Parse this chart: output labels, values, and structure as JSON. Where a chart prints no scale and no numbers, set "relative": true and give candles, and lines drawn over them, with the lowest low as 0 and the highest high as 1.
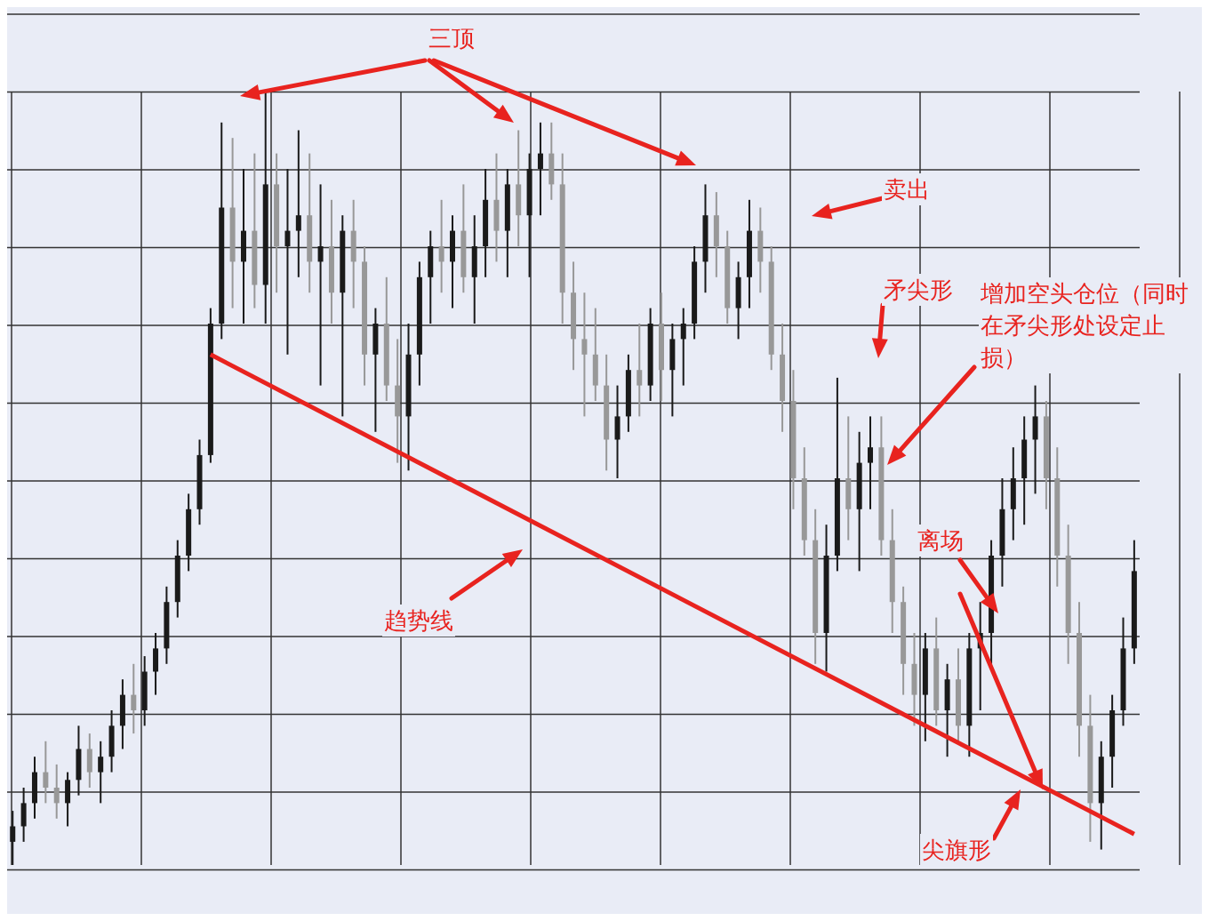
{
  "chart_data": {
    "type": "candlestick",
    "relative": true,
    "grid": true,
    "tick_labels": false,
    "colors": [
      "#1a1a1a",
      "#1a1a1a",
      "#1a1a1a",
      "#989898",
      "#989898",
      "#1a1a1a",
      "#1a1a1a",
      "#989898",
      "#1a1a1a",
      "#1a1a1a",
      "#1a1a1a",
      "#989898",
      "#1a1a1a",
      "#1a1a1a",
      "#1a1a1a",
      "#1a1a1a",
      "#1a1a1a",
      "#1a1a1a",
      "#1a1a1a",
      "#1a1a1a",
      "#989898",
      "#1a1a1a",
      "#989898",
      "#1a1a1a",
      "#989898",
      "#1a1a1a",
      "#1a1a1a",
      "#989898",
      "#1a1a1a",
      "#989898",
      "#1a1a1a",
      "#989898",
      "#989898",
      "#1a1a1a",
      "#989898",
      "#989898",
      "#1a1a1a",
      "#1a1a1a",
      "#1a1a1a",
      "#989898",
      "#1a1a1a",
      "#989898",
      "#1a1a1a",
      "#1a1a1a",
      "#989898",
      "#1a1a1a",
      "#989898",
      "#1a1a1a",
      "#1a1a1a",
      "#989898",
      "#989898",
      "#989898",
      "#989898",
      "#989898",
      "#989898",
      "#1a1a1a",
      "#1a1a1a",
      "#989898",
      "#1a1a1a",
      "#989898",
      "#1a1a1a",
      "#1a1a1a",
      "#1a1a1a",
      "#1a1a1a",
      "#989898",
      "#989898",
      "#1a1a1a",
      "#1a1a1a",
      "#989898",
      "#989898",
      "#989898",
      "#989898",
      "#989898",
      "#989898",
      "#1a1a1a",
      "#1a1a1a",
      "#989898",
      "#1a1a1a",
      "#1a1a1a",
      "#989898",
      "#989898",
      "#989898",
      "#989898",
      "#1a1a1a",
      "#989898",
      "#1a1a1a",
      "#989898",
      "#1a1a1a",
      "#1a1a1a",
      "#1a1a1a",
      "#1a1a1a",
      "#1a1a1a",
      "#1a1a1a",
      "#1a1a1a",
      "#989898",
      "#989898",
      "#989898",
      "#989898",
      "#989898",
      "#1a1a1a",
      "#1a1a1a",
      "#1a1a1a",
      "#1a1a1a"
    ],
    "categories": [
      null,
      null,
      null,
      null,
      null,
      null,
      null,
      null,
      null,
      null,
      null,
      null,
      null,
      null,
      null,
      null,
      null,
      null,
      null,
      null,
      null,
      null,
      null,
      null,
      null,
      null,
      null,
      null,
      null,
      null,
      null,
      null,
      null,
      null,
      null,
      null,
      null,
      null,
      null,
      null,
      null,
      null,
      null,
      null,
      null,
      null,
      null,
      null,
      null,
      null,
      null,
      null,
      null,
      null,
      null,
      null,
      null,
      null,
      null,
      null,
      null,
      null,
      null,
      null,
      null,
      null,
      null,
      null,
      null,
      null,
      null,
      null,
      null,
      null,
      null,
      null,
      null,
      null,
      null,
      null,
      null,
      null,
      null,
      null,
      null,
      null,
      null,
      null,
      null,
      null,
      null,
      null,
      null,
      null,
      null,
      null,
      null,
      null,
      null,
      null,
      null,
      null,
      null
    ],
    "ohlc": [
      [
        0.03,
        0.07,
        0.0,
        0.05
      ],
      [
        0.05,
        0.1,
        0.03,
        0.08
      ],
      [
        0.08,
        0.14,
        0.06,
        0.12
      ],
      [
        0.12,
        0.16,
        0.08,
        0.1
      ],
      [
        0.1,
        0.13,
        0.06,
        0.08
      ],
      [
        0.08,
        0.12,
        0.05,
        0.11
      ],
      [
        0.11,
        0.18,
        0.09,
        0.15
      ],
      [
        0.15,
        0.17,
        0.1,
        0.12
      ],
      [
        0.12,
        0.16,
        0.08,
        0.14
      ],
      [
        0.14,
        0.2,
        0.12,
        0.18
      ],
      [
        0.18,
        0.24,
        0.15,
        0.22
      ],
      [
        0.22,
        0.26,
        0.17,
        0.2
      ],
      [
        0.2,
        0.27,
        0.18,
        0.25
      ],
      [
        0.25,
        0.3,
        0.22,
        0.28
      ],
      [
        0.28,
        0.36,
        0.26,
        0.34
      ],
      [
        0.34,
        0.42,
        0.32,
        0.4
      ],
      [
        0.4,
        0.48,
        0.38,
        0.46
      ],
      [
        0.46,
        0.55,
        0.44,
        0.53
      ],
      [
        0.53,
        0.72,
        0.52,
        0.7
      ],
      [
        0.7,
        0.96,
        0.68,
        0.85
      ],
      [
        0.85,
        0.94,
        0.72,
        0.78
      ],
      [
        0.78,
        0.9,
        0.7,
        0.82
      ],
      [
        0.82,
        0.92,
        0.72,
        0.75
      ],
      [
        0.75,
        1.0,
        0.7,
        0.88
      ],
      [
        0.88,
        0.92,
        0.74,
        0.8
      ],
      [
        0.8,
        0.9,
        0.66,
        0.82
      ],
      [
        0.82,
        0.95,
        0.76,
        0.84
      ],
      [
        0.84,
        0.92,
        0.74,
        0.78
      ],
      [
        0.78,
        0.88,
        0.62,
        0.8
      ],
      [
        0.8,
        0.86,
        0.7,
        0.74
      ],
      [
        0.74,
        0.84,
        0.58,
        0.82
      ],
      [
        0.82,
        0.86,
        0.72,
        0.78
      ],
      [
        0.78,
        0.8,
        0.62,
        0.66
      ],
      [
        0.66,
        0.72,
        0.56,
        0.7
      ],
      [
        0.7,
        0.76,
        0.6,
        0.62
      ],
      [
        0.62,
        0.68,
        0.52,
        0.58
      ],
      [
        0.58,
        0.7,
        0.51,
        0.66
      ],
      [
        0.66,
        0.78,
        0.62,
        0.76
      ],
      [
        0.76,
        0.82,
        0.7,
        0.8
      ],
      [
        0.8,
        0.86,
        0.74,
        0.78
      ],
      [
        0.78,
        0.84,
        0.72,
        0.82
      ],
      [
        0.82,
        0.88,
        0.74,
        0.76
      ],
      [
        0.76,
        0.84,
        0.7,
        0.8
      ],
      [
        0.8,
        0.9,
        0.76,
        0.86
      ],
      [
        0.86,
        0.92,
        0.78,
        0.82
      ],
      [
        0.82,
        0.9,
        0.76,
        0.88
      ],
      [
        0.88,
        0.95,
        0.8,
        0.84
      ],
      [
        0.84,
        0.92,
        0.76,
        0.9
      ],
      [
        0.9,
        0.96,
        0.84,
        0.92
      ],
      [
        0.92,
        0.96,
        0.86,
        0.88
      ],
      [
        0.88,
        0.92,
        0.7,
        0.74
      ],
      [
        0.74,
        0.78,
        0.64,
        0.68
      ],
      [
        0.68,
        0.74,
        0.58,
        0.66
      ],
      [
        0.66,
        0.72,
        0.6,
        0.62
      ],
      [
        0.62,
        0.66,
        0.51,
        0.55
      ],
      [
        0.55,
        0.62,
        0.5,
        0.58
      ],
      [
        0.58,
        0.66,
        0.56,
        0.64
      ],
      [
        0.64,
        0.7,
        0.58,
        0.62
      ],
      [
        0.62,
        0.72,
        0.6,
        0.7
      ],
      [
        0.7,
        0.74,
        0.6,
        0.64
      ],
      [
        0.64,
        0.7,
        0.58,
        0.68
      ],
      [
        0.68,
        0.72,
        0.62,
        0.7
      ],
      [
        0.7,
        0.8,
        0.68,
        0.78
      ],
      [
        0.78,
        0.88,
        0.74,
        0.84
      ],
      [
        0.84,
        0.87,
        0.76,
        0.8
      ],
      [
        0.8,
        0.82,
        0.7,
        0.72
      ],
      [
        0.72,
        0.78,
        0.68,
        0.76
      ],
      [
        0.76,
        0.86,
        0.72,
        0.82
      ],
      [
        0.82,
        0.85,
        0.74,
        0.78
      ],
      [
        0.78,
        0.8,
        0.64,
        0.66
      ],
      [
        0.66,
        0.7,
        0.56,
        0.6
      ],
      [
        0.6,
        0.64,
        0.46,
        0.5
      ],
      [
        0.5,
        0.54,
        0.4,
        0.42
      ],
      [
        0.42,
        0.46,
        0.26,
        0.3
      ],
      [
        0.3,
        0.44,
        0.25,
        0.4
      ],
      [
        0.4,
        0.63,
        0.38,
        0.5
      ],
      [
        0.5,
        0.58,
        0.42,
        0.46
      ],
      [
        0.46,
        0.56,
        0.38,
        0.52
      ],
      [
        0.52,
        0.58,
        0.46,
        0.54
      ],
      [
        0.54,
        0.58,
        0.4,
        0.42
      ],
      [
        0.42,
        0.46,
        0.3,
        0.34
      ],
      [
        0.34,
        0.36,
        0.22,
        0.26
      ],
      [
        0.26,
        0.3,
        0.18,
        0.22
      ],
      [
        0.22,
        0.3,
        0.16,
        0.28
      ],
      [
        0.28,
        0.32,
        0.18,
        0.2
      ],
      [
        0.2,
        0.26,
        0.14,
        0.24
      ],
      [
        0.24,
        0.28,
        0.16,
        0.18
      ],
      [
        0.18,
        0.3,
        0.14,
        0.28
      ],
      [
        0.28,
        0.34,
        0.2,
        0.3
      ],
      [
        0.3,
        0.42,
        0.26,
        0.4
      ],
      [
        0.4,
        0.5,
        0.36,
        0.46
      ],
      [
        0.46,
        0.54,
        0.42,
        0.5
      ],
      [
        0.5,
        0.58,
        0.44,
        0.55
      ],
      [
        0.55,
        0.62,
        0.48,
        0.58
      ],
      [
        0.58,
        0.6,
        0.46,
        0.5
      ],
      [
        0.5,
        0.54,
        0.36,
        0.4
      ],
      [
        0.4,
        0.44,
        0.26,
        0.3
      ],
      [
        0.3,
        0.34,
        0.14,
        0.18
      ],
      [
        0.18,
        0.22,
        0.03,
        0.08
      ],
      [
        0.08,
        0.16,
        0.02,
        0.14
      ],
      [
        0.14,
        0.22,
        0.1,
        0.2
      ],
      [
        0.2,
        0.32,
        0.18,
        0.28
      ],
      [
        0.28,
        0.42,
        0.26,
        0.38
      ]
    ],
    "series": [
      {
        "type": "line",
        "color": "#e8231f",
        "values": [
          null,
          null,
          null,
          null,
          null,
          null,
          null,
          null,
          null,
          null,
          null,
          null,
          null,
          null,
          null,
          null,
          null,
          null,
          0.66,
          null,
          null,
          null,
          null,
          null,
          null,
          null,
          null,
          null,
          null,
          null,
          null,
          null,
          null,
          null,
          null,
          null,
          null,
          null,
          null,
          null,
          null,
          null,
          null,
          null,
          null,
          null,
          null,
          null,
          null,
          null,
          null,
          null,
          null,
          null,
          null,
          null,
          null,
          null,
          null,
          null,
          null,
          null,
          null,
          null,
          null,
          null,
          null,
          null,
          null,
          null,
          null,
          null,
          null,
          null,
          null,
          null,
          null,
          null,
          null,
          null,
          null,
          null,
          null,
          null,
          null,
          null,
          null,
          null,
          null,
          null,
          null,
          null,
          null,
          null,
          null,
          null,
          null,
          null,
          null,
          null,
          null,
          null,
          0.04
        ]
      }
    ],
    "annotations": [
      "三顶",
      "卖出",
      "矛尖形",
      "增加空头仓位（同时在矛尖形处设定止损）",
      "离场",
      "趋势线",
      "尖旗形"
    ]
  }
}
